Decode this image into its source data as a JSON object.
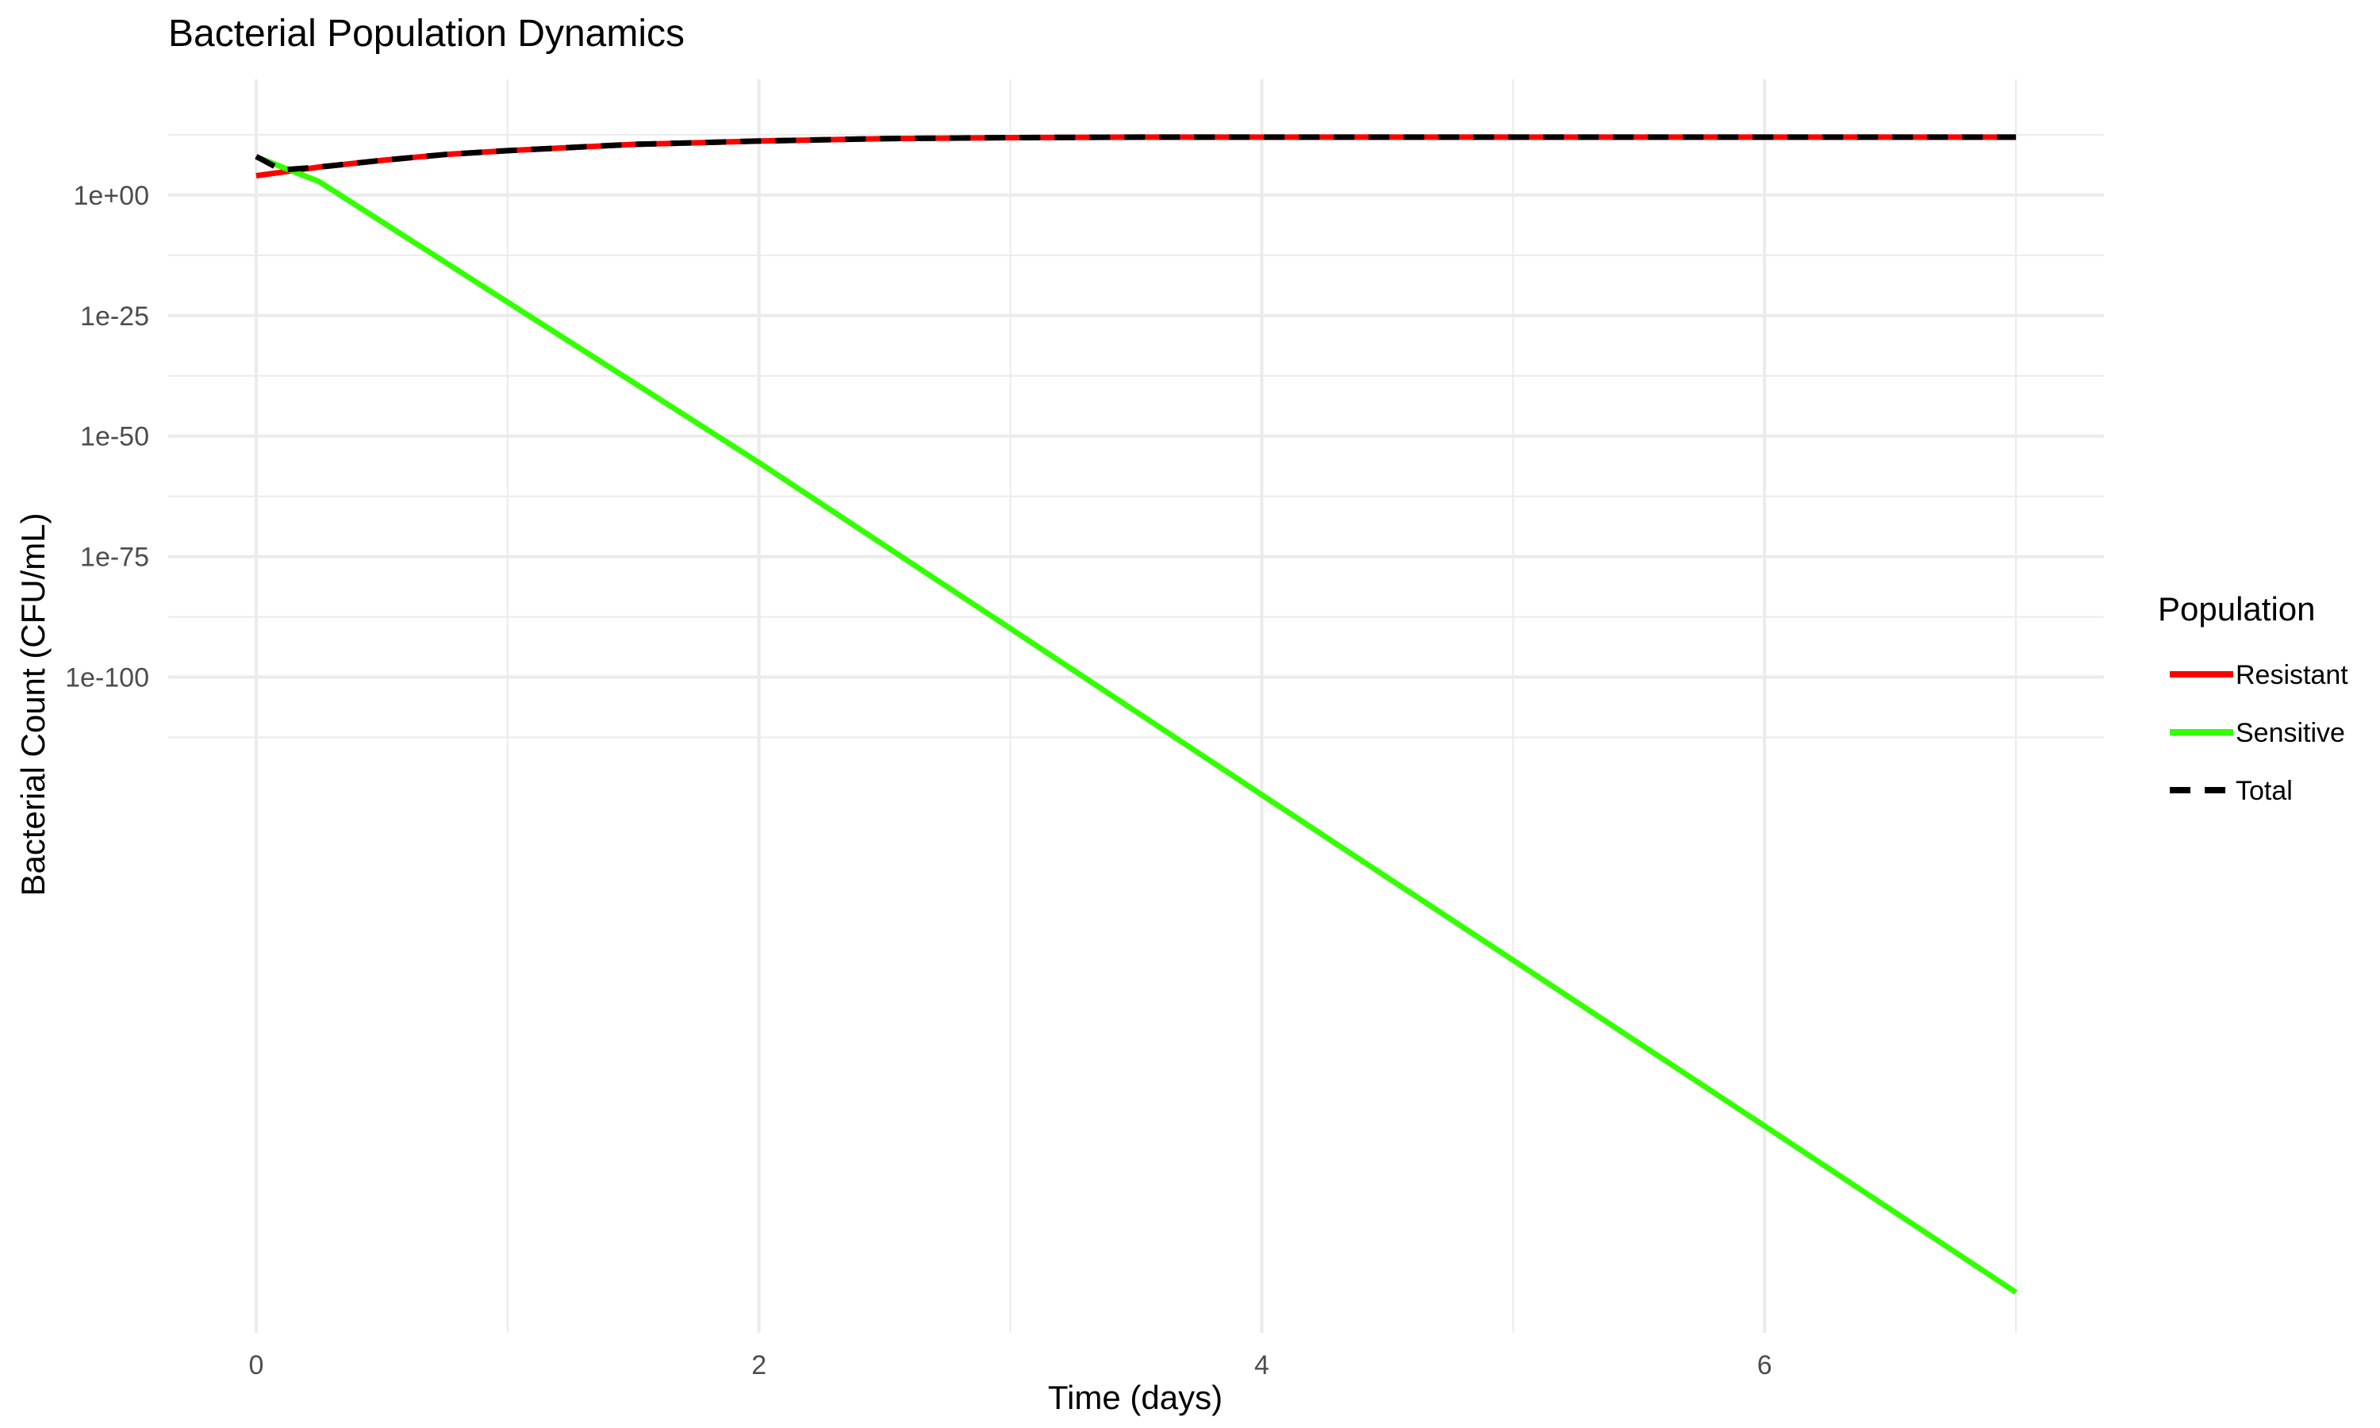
{
  "chart_data": {
    "type": "line",
    "title": "Bacterial Population Dynamics",
    "xlabel": "Time (days)",
    "ylabel": "Bacterial Count (CFU/mL)",
    "x_ticks": [
      0,
      2,
      4,
      6
    ],
    "x_tick_labels": [
      "0",
      "2",
      "4",
      "6"
    ],
    "xlim": [
      -0.35,
      7.35
    ],
    "y_scale": "log10",
    "y_ticks_log10": [
      0,
      -25,
      -50,
      -75,
      -100
    ],
    "y_tick_labels": [
      "1e+00",
      "1e-25",
      "1e-50",
      "1e-75",
      "1e-100"
    ],
    "ylim_log10": [
      24,
      -236
    ],
    "grid": true,
    "legend": {
      "title": "Population",
      "placement": "right",
      "items": [
        "Resistant",
        "Sensitive",
        "Total"
      ]
    },
    "series": [
      {
        "name": "Resistant",
        "color": "#ff0000",
        "style": "solid",
        "x": [
          0,
          0.25,
          0.5,
          0.75,
          1,
          1.5,
          2,
          2.5,
          3,
          3.5,
          4,
          5,
          6,
          7
        ],
        "log10_y": [
          4,
          5.8,
          7.2,
          8.4,
          9.2,
          10.5,
          11.2,
          11.7,
          11.9,
          12,
          12,
          12,
          12,
          12
        ]
      },
      {
        "name": "Sensitive",
        "color": "#33ff00",
        "style": "solid",
        "x": [
          0,
          0.25,
          1,
          2,
          3,
          4,
          5,
          6,
          7
        ],
        "log10_y": [
          7.9,
          2.8,
          -22.2,
          -55.5,
          -89.9,
          -124.4,
          -158.7,
          -193.1,
          -227.6
        ]
      },
      {
        "name": "Total",
        "color": "#000000",
        "style": "dashed",
        "x": [
          0,
          0.1,
          0.25,
          0.5,
          0.75,
          1,
          1.5,
          2,
          2.5,
          3,
          3.5,
          4,
          5,
          6,
          7
        ],
        "log10_y": [
          8,
          5.2,
          5.8,
          7.2,
          8.4,
          9.2,
          10.5,
          11.2,
          11.7,
          11.9,
          12,
          12,
          12,
          12,
          12
        ]
      }
    ]
  }
}
